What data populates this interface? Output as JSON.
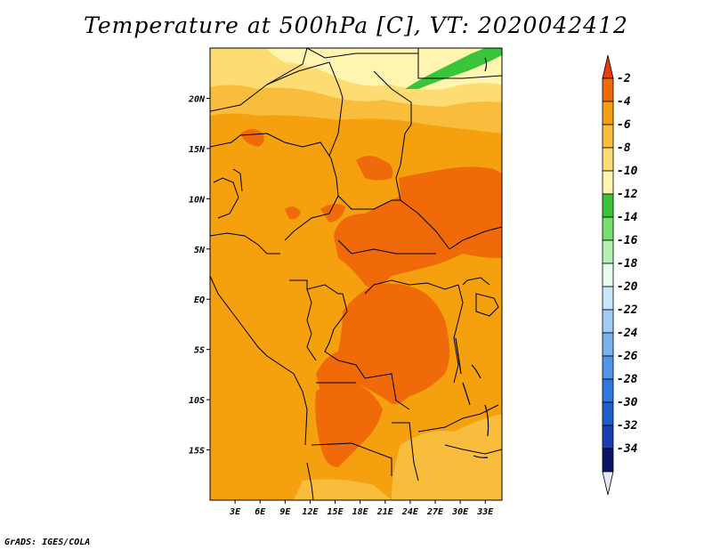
{
  "title": "Temperature at 500hPa [C], VT: 2020042412",
  "credit": "GrADS: IGES/COLA",
  "map": {
    "lon_range": [
      0,
      35
    ],
    "lat_range": [
      -20,
      25
    ],
    "lat_ticks": [
      {
        "value": 20,
        "label": "20N"
      },
      {
        "value": 15,
        "label": "15N"
      },
      {
        "value": 10,
        "label": "10N"
      },
      {
        "value": 5,
        "label": "5N"
      },
      {
        "value": 0,
        "label": "EQ"
      },
      {
        "value": -5,
        "label": "5S"
      },
      {
        "value": -10,
        "label": "10S"
      },
      {
        "value": -15,
        "label": "15S"
      }
    ],
    "lon_ticks": [
      {
        "value": 3,
        "label": "3E"
      },
      {
        "value": 6,
        "label": "6E"
      },
      {
        "value": 9,
        "label": "9E"
      },
      {
        "value": 12,
        "label": "12E"
      },
      {
        "value": 15,
        "label": "15E"
      },
      {
        "value": 18,
        "label": "18E"
      },
      {
        "value": 21,
        "label": "21E"
      },
      {
        "value": 24,
        "label": "24E"
      },
      {
        "value": 27,
        "label": "27E"
      },
      {
        "value": 30,
        "label": "30E"
      },
      {
        "value": 33,
        "label": "33E"
      }
    ]
  },
  "colorbar": {
    "labels": [
      "-2",
      "-4",
      "-6",
      "-8",
      "-10",
      "-12",
      "-14",
      "-16",
      "-18",
      "-20",
      "-22",
      "-24",
      "-26",
      "-28",
      "-30",
      "-32",
      "-34"
    ],
    "colors": [
      "#e83c0a",
      "#f06a0a",
      "#f5a00f",
      "#f8bd3c",
      "#fddc73",
      "#fff5b0",
      "#39c43a",
      "#73df6f",
      "#b4f0b0",
      "#e8fcf0",
      "#c8e5fa",
      "#a0cdf5",
      "#78b3ee",
      "#4f97e6",
      "#2f78dd",
      "#1e5fce",
      "#1a3fb0",
      "#0c1468",
      "#e6e6f8"
    ]
  },
  "colors": {
    "ocean": "#f5a00f",
    "border": "#000000"
  }
}
